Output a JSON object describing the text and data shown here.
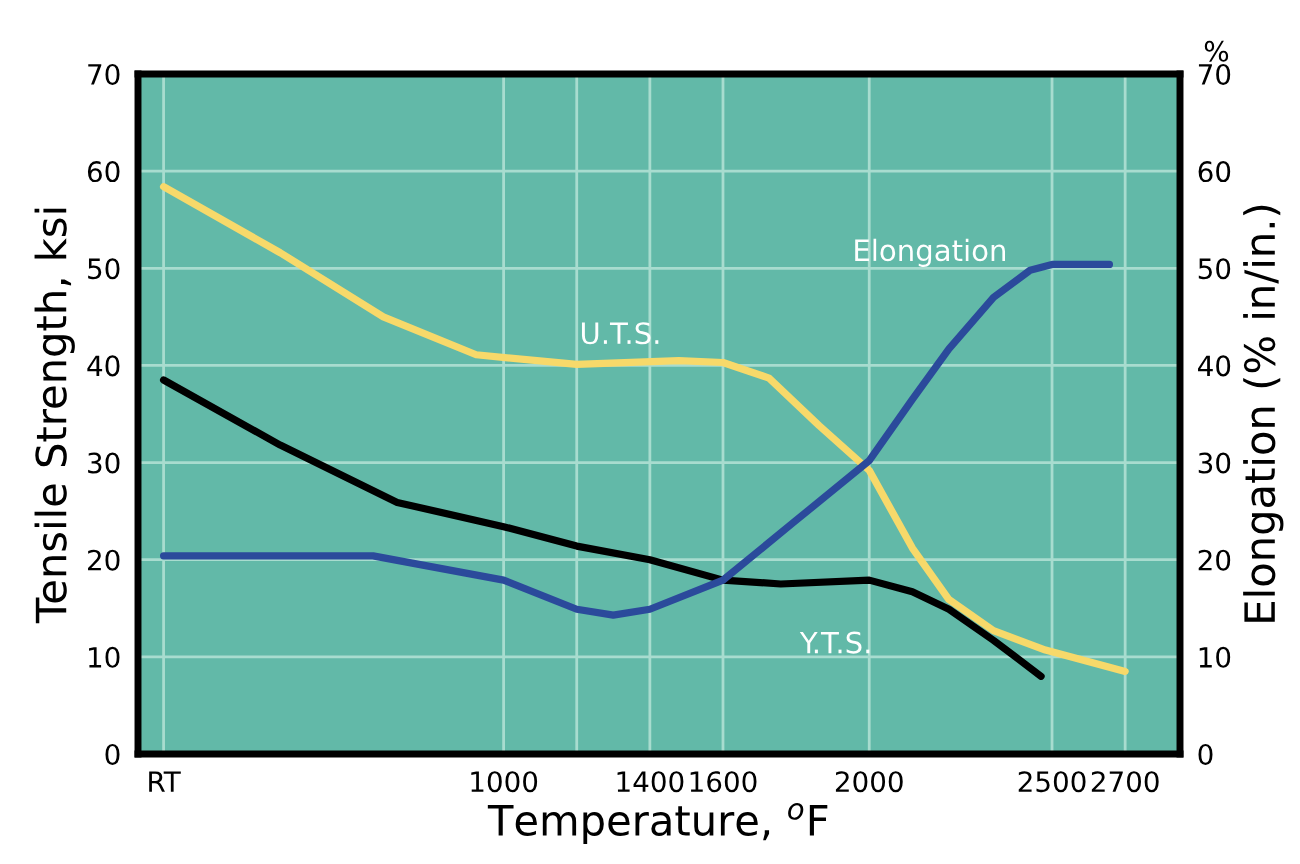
{
  "chart_data": {
    "type": "line",
    "xlabel": "Temperature, $^{o}$F",
    "ylabel": "Tensile Strength, ksi",
    "y2label": "Elongation (% in/in.)",
    "annotations": [
      "%"
    ],
    "xlim": [
      0,
      2850
    ],
    "xticks": [
      {
        "value": 70,
        "label": "RT"
      },
      1000,
      {
        "value": 1200,
        "label": null
      },
      1400,
      1600,
      2000,
      2500,
      2700
    ],
    "ylim": [
      0,
      70
    ],
    "yticks": [
      0,
      10,
      20,
      30,
      40,
      50,
      60,
      70
    ],
    "y2lim": [
      0,
      70
    ],
    "y2ticks": [
      0,
      10,
      20,
      30,
      40,
      50,
      60,
      70
    ],
    "grid": true,
    "legend": false,
    "line_style": "solid",
    "marker": "none",
    "series": [
      {
        "name": "U.T.S.",
        "color": "#f7d96a",
        "x": [
          70,
          389,
          671,
          925,
          1200,
          1479,
          1600,
          1726,
          1863,
          2000,
          2118,
          2218,
          2340,
          2482,
          2700
        ],
        "values": [
          58.4,
          51.6,
          45.0,
          41.1,
          40.1,
          40.5,
          40.3,
          38.7,
          33.8,
          29.2,
          21.2,
          15.9,
          12.7,
          10.7,
          8.5
        ]
      },
      {
        "name": "Y.T.S.",
        "color": "#000000",
        "x": [
          70,
          389,
          709,
          1000,
          1200,
          1400,
          1600,
          1758,
          2000,
          2118,
          2218,
          2340,
          2470
        ],
        "values": [
          38.5,
          31.8,
          25.9,
          23.4,
          21.4,
          20.0,
          17.9,
          17.5,
          17.9,
          16.7,
          14.9,
          11.7,
          8.0
        ]
      },
      {
        "name": "Elongation",
        "color": "#2b4a9b",
        "x": [
          70,
          643,
          1000,
          1200,
          1300,
          1400,
          1600,
          1795,
          2000,
          2118,
          2218,
          2340,
          2440,
          2500,
          2657
        ],
        "values": [
          20.4,
          20.4,
          17.9,
          14.9,
          14.3,
          14.9,
          17.9,
          23.9,
          30.2,
          36.5,
          41.7,
          47.0,
          49.8,
          50.4,
          50.4
        ]
      }
    ]
  }
}
